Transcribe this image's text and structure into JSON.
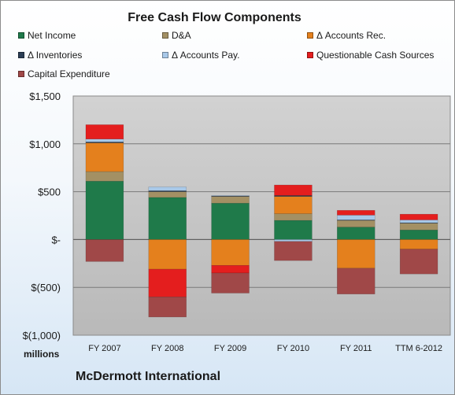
{
  "chart_data": {
    "type": "bar",
    "stacked": true,
    "title": "Free Cash Flow Components",
    "company": "McDermott International",
    "unit_label": "millions",
    "categories": [
      "FY 2007",
      "FY 2008",
      "FY 2009",
      "FY 2010",
      "FY 2011",
      "TTM 6-2012"
    ],
    "ylim": [
      -1000,
      1500
    ],
    "yticks": [
      1500,
      1000,
      500,
      0,
      -500,
      -1000
    ],
    "ytick_labels": [
      "$1,500",
      "$1,000",
      "$500",
      "$-",
      "$(500)",
      "$(1,000)"
    ],
    "grid": true,
    "legend_position": "top",
    "series": [
      {
        "name": "Net Income",
        "color": "#1f7a4a",
        "values": [
          610,
          440,
          380,
          200,
          130,
          100
        ]
      },
      {
        "name": "D&A",
        "color": "#a39064",
        "values": [
          100,
          60,
          70,
          70,
          70,
          70
        ]
      },
      {
        "name": "Δ Accounts Rec.",
        "color": "#e4801d",
        "values": [
          300,
          -310,
          -270,
          180,
          -300,
          -100
        ]
      },
      {
        "name": "Δ Inventories",
        "color": "#2c3e55",
        "values": [
          10,
          10,
          5,
          10,
          5,
          5
        ]
      },
      {
        "name": "Δ Accounts Pay.",
        "color": "#a8c8e8",
        "values": [
          30,
          40,
          5,
          -20,
          50,
          30
        ]
      },
      {
        "name": "Questionable Cash Sources",
        "color": "#e41e1e",
        "values": [
          150,
          -290,
          -80,
          110,
          50,
          60
        ]
      },
      {
        "name": "Capital Expenditure",
        "color": "#a04848",
        "values": [
          -230,
          -210,
          -210,
          -200,
          -270,
          -260
        ]
      }
    ]
  }
}
